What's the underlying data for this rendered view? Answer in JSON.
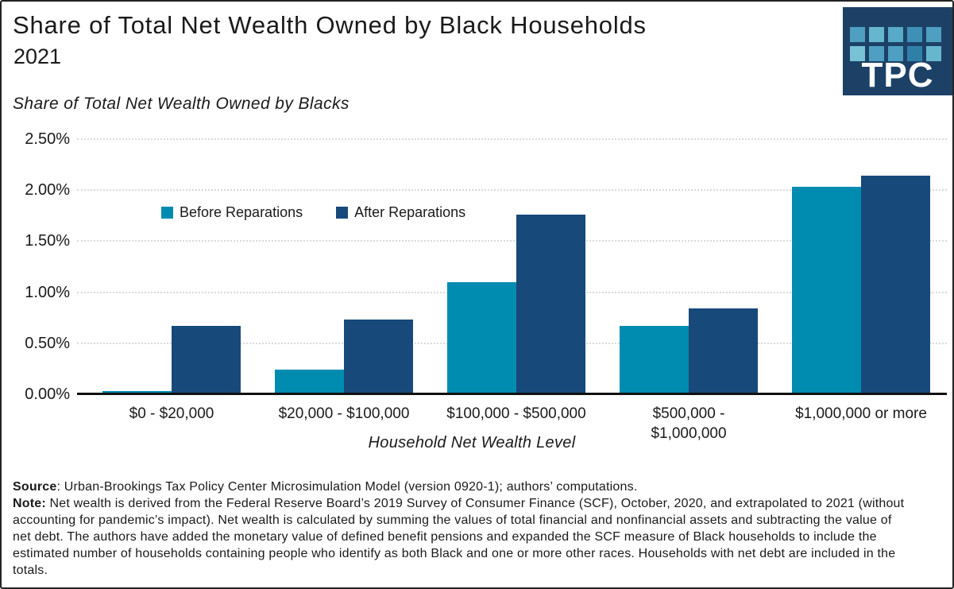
{
  "header": {
    "title": "Share of Total Net Wealth Owned by Black Households",
    "year": "2021"
  },
  "logo": {
    "text": "TPC",
    "bg": "#1d4166",
    "square_colors": [
      "#4e9fc1",
      "#66b6cf",
      "#57abc9",
      "#3f90b6",
      "#4e9fc1",
      "#79c2d6",
      "#4e9fc1",
      "#4e9fc1",
      "#2f80a9",
      "#66b6cf"
    ]
  },
  "chart_data": {
    "type": "bar",
    "title": "Share of Total Net Wealth Owned by Black Households",
    "subtitle": "2021",
    "axis_title_y": "Share of Total Net Wealth Owned by Blacks",
    "axis_title_x": "Household Net Wealth Level",
    "categories": [
      "$0 - $20,000",
      "$20,000 - $100,000",
      "$100,000 - $500,000",
      "$500,000 -\n$1,000,000",
      "$1,000,000 or more"
    ],
    "series": [
      {
        "name": "Before Reparations",
        "color": "#008cb1",
        "values": [
          0.03,
          0.24,
          1.1,
          0.67,
          2.03
        ]
      },
      {
        "name": "After Reparations",
        "color": "#17497b",
        "values": [
          0.67,
          0.73,
          1.76,
          0.84,
          2.14
        ]
      }
    ],
    "ylim": [
      0,
      2.5
    ],
    "ytick_step": 0.5,
    "ytick_labels": [
      "0.00%",
      "0.50%",
      "1.00%",
      "1.50%",
      "2.00%",
      "2.50%"
    ],
    "grid": "dotted-horizontal",
    "gridline_color": "#d9d9d9",
    "axis_color": "#111111",
    "legend_position": "inside-top-left"
  },
  "footer": {
    "source_label": "Source",
    "source_text": ": Urban-Brookings Tax Policy Center Microsimulation Model (version 0920-1); authors’ computations.",
    "note_label": "Note:",
    "note_text": " Net wealth is derived from the Federal Reserve Board’s 2019 Survey of Consumer Finance (SCF), October, 2020, and extrapolated to 2021 (without accounting for pandemic’s impact). Net wealth is calculated by summing the values of total financial and nonfinancial assets and subtracting the value of net debt. The authors have added the monetary value of defined benefit pensions and expanded the SCF measure of Black households to include the estimated number of households containing people who identify as both Black and one or more other races. Households with net debt are included in the totals."
  }
}
